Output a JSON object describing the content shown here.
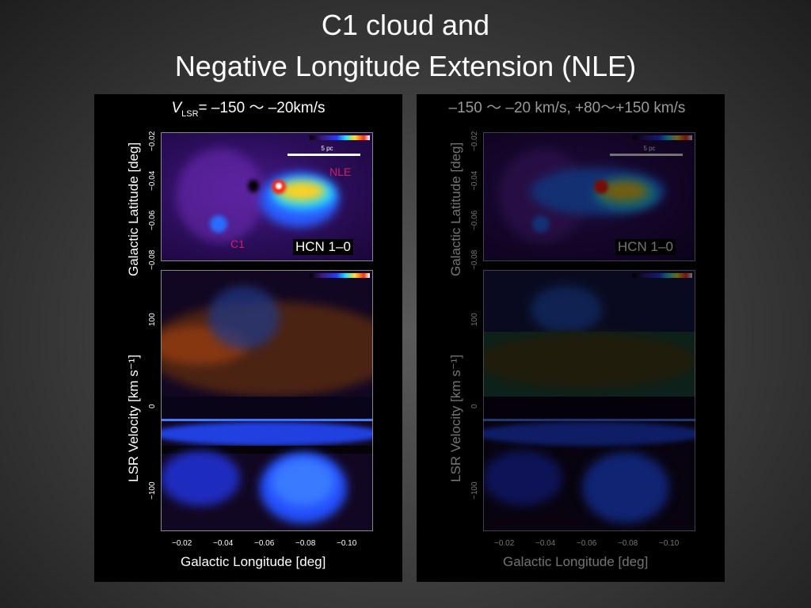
{
  "title": {
    "line1": "C1 cloud and",
    "line2": "Negative Longitude Extension (NLE)"
  },
  "left_panel": {
    "velocity_label_prefix": "V",
    "velocity_label_sub": "LSR",
    "velocity_label_rest": "= –150 〜 –20km/s",
    "map_line_label": "HCN 1–0",
    "nle_label": "NLE",
    "c1_label": "C1",
    "scale_label": "5 pc"
  },
  "right_panel": {
    "velocity_label": "–150 〜 –20 km/s, +80〜+150 km/s",
    "map_line_label": "HCN 1–0",
    "scale_label": "5 pc"
  },
  "axes": {
    "map_ylabel": "Galactic Latitude  [deg]",
    "pv_ylabel": "LSR Velocity  [km s⁻¹]",
    "xlabel": "Galactic Longitude  [deg]",
    "lat_ticks": [
      "−0.02",
      "−0.04",
      "−0.06",
      "−0.08"
    ],
    "vel_ticks": [
      "100",
      "0",
      "−100"
    ],
    "lon_ticks": [
      "−0.02",
      "−0.04",
      "−0.06",
      "−0.08",
      "−0.10"
    ]
  }
}
